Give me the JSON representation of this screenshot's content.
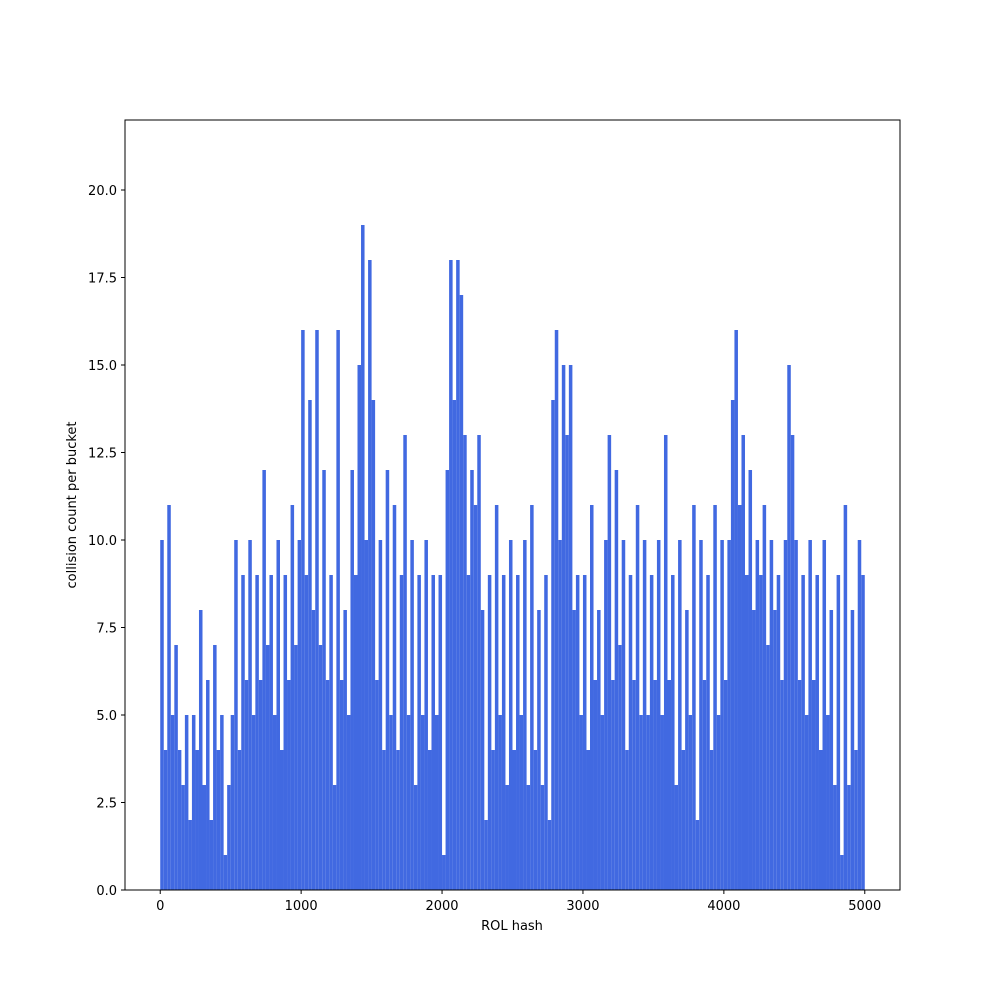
{
  "chart_data": {
    "type": "histogram",
    "xlabel": "ROL hash",
    "ylabel": "collision count per bucket",
    "color": "#4169e1",
    "bins": [
      0,
      25,
      50,
      75,
      100,
      125,
      150,
      175,
      200,
      225,
      250,
      275,
      300,
      325,
      350,
      375,
      400,
      425,
      450,
      475,
      500,
      525,
      550,
      575,
      600,
      625,
      650,
      675,
      700,
      725,
      750,
      775,
      800,
      825,
      850,
      875,
      900,
      925,
      950,
      975,
      1000,
      1025,
      1050,
      1075,
      1100,
      1125,
      1150,
      1175,
      1200,
      1225,
      1250,
      1275,
      1300,
      1325,
      1350,
      1375,
      1400,
      1425,
      1450,
      1475,
      1500,
      1525,
      1550,
      1575,
      1600,
      1625,
      1650,
      1675,
      1700,
      1725,
      1750,
      1775,
      1800,
      1825,
      1850,
      1875,
      1900,
      1925,
      1950,
      1975,
      2000,
      2025,
      2050,
      2075,
      2100,
      2125,
      2150,
      2175,
      2200,
      2225,
      2250,
      2275,
      2300,
      2325,
      2350,
      2375,
      2400,
      2425,
      2450,
      2475,
      2500,
      2525,
      2550,
      2575,
      2600,
      2625,
      2650,
      2675,
      2700,
      2725,
      2750,
      2775,
      2800,
      2825,
      2850,
      2875,
      2900,
      2925,
      2950,
      2975,
      3000,
      3025,
      3050,
      3075,
      3100,
      3125,
      3150,
      3175,
      3200,
      3225,
      3250,
      3275,
      3300,
      3325,
      3350,
      3375,
      3400,
      3425,
      3450,
      3475,
      3500,
      3525,
      3550,
      3575,
      3600,
      3625,
      3650,
      3675,
      3700,
      3725,
      3750,
      3775,
      3800,
      3825,
      3850,
      3875,
      3900,
      3925,
      3950,
      3975,
      4000,
      4025,
      4050,
      4075,
      4100,
      4125,
      4150,
      4175,
      4200,
      4225,
      4250,
      4275,
      4300,
      4325,
      4350,
      4375,
      4400,
      4425,
      4450,
      4475,
      4500,
      4525,
      4550,
      4575,
      4600,
      4625,
      4650,
      4675,
      4700,
      4725,
      4750,
      4775,
      4800,
      4825,
      4850,
      4875,
      4900,
      4925,
      4950,
      4975,
      5000
    ],
    "values": [
      10,
      4,
      11,
      5,
      7,
      4,
      3,
      5,
      2,
      5,
      4,
      8,
      3,
      6,
      2,
      7,
      4,
      5,
      1,
      3,
      5,
      10,
      4,
      9,
      6,
      10,
      5,
      9,
      6,
      12,
      7,
      9,
      5,
      10,
      4,
      9,
      6,
      11,
      7,
      10,
      16,
      9,
      14,
      8,
      16,
      7,
      12,
      6,
      9,
      3,
      16,
      6,
      8,
      5,
      12,
      9,
      15,
      19,
      10,
      18,
      14,
      6,
      10,
      4,
      12,
      5,
      11,
      4,
      9,
      13,
      5,
      10,
      3,
      9,
      5,
      10,
      4,
      9,
      5,
      9,
      1,
      12,
      18,
      14,
      18,
      17,
      13,
      9,
      12,
      11,
      13,
      8,
      2,
      9,
      4,
      11,
      5,
      9,
      3,
      10,
      4,
      9,
      5,
      10,
      3,
      11,
      4,
      8,
      3,
      9,
      2,
      14,
      16,
      10,
      15,
      13,
      15,
      8,
      9,
      5,
      9,
      4,
      11,
      6,
      8,
      5,
      10,
      13,
      6,
      12,
      7,
      10,
      4,
      9,
      6,
      11,
      5,
      10,
      5,
      9,
      6,
      10,
      5,
      13,
      6,
      9,
      3,
      10,
      4,
      8,
      5,
      11,
      2,
      10,
      6,
      9,
      4,
      11,
      5,
      10,
      6,
      10,
      14,
      16,
      11,
      13,
      9,
      12,
      8,
      10,
      9,
      11,
      7,
      10,
      8,
      9,
      6,
      10,
      15,
      13,
      10,
      6,
      9,
      5,
      10,
      6,
      9,
      4,
      10,
      5,
      8,
      3,
      9,
      1,
      11,
      3,
      8,
      4,
      10,
      9
    ],
    "xlim": [
      -250,
      5250
    ],
    "xticks": [
      0,
      1000,
      2000,
      3000,
      4000,
      5000
    ],
    "ylim": [
      0,
      22
    ],
    "yticks": [
      {
        "value": 0,
        "label": "0.0"
      },
      {
        "value": 2.5,
        "label": "2.5"
      },
      {
        "value": 5,
        "label": "5.0"
      },
      {
        "value": 7.5,
        "label": "7.5"
      },
      {
        "value": 10,
        "label": "10.0"
      },
      {
        "value": 12.5,
        "label": "12.5"
      },
      {
        "value": 15,
        "label": "15.0"
      },
      {
        "value": 17.5,
        "label": "17.5"
      },
      {
        "value": 20,
        "label": "20.0"
      }
    ]
  }
}
